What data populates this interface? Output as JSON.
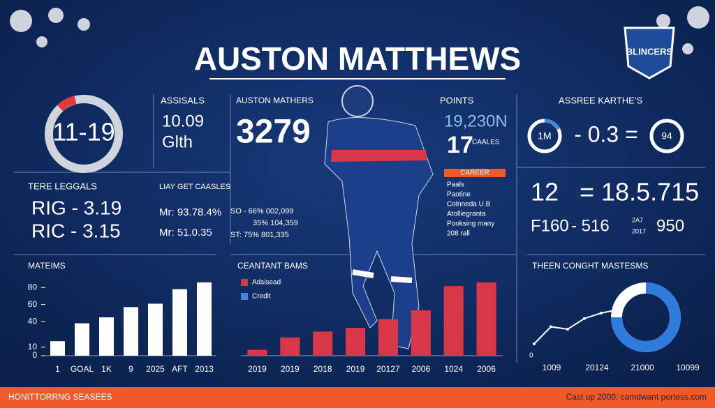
{
  "header": {
    "title": "AUSTON MATTHEWS",
    "logo": "BLINCERS"
  },
  "left": {
    "ring": "11-19",
    "label": "TERE LEGGALS",
    "rows": [
      "RIG - 3.19",
      "RIC - 3.15"
    ]
  },
  "assists": {
    "label": "ASSISALS",
    "line1": "10.09",
    "line2": "Glth"
  },
  "total": {
    "label": "AUSTON MATHERS",
    "value": "3279"
  },
  "stats": {
    "label": "LIAY GET CAASLES",
    "rows": [
      "Mr: 93.78.4%",
      "Mr: 51.0.35"
    ],
    "right": [
      "SO - 66% 002,099",
      "35% 104,359",
      "ST: 75% 801,335"
    ]
  },
  "points": {
    "label": "POINTS",
    "value": "19,230N",
    "num": "17",
    "sub": "CAALES",
    "badge": "CAREER",
    "list": [
      "Paals",
      "Paotine",
      "Colnneda U.B",
      "Atolliegranta",
      "Pooksing many",
      "208 rall"
    ]
  },
  "compare": {
    "label": "ASSREE KARTHE'S",
    "left": "1M",
    "mid": "- 0.3 =",
    "right": "94",
    "row1": [
      "12",
      "= 18.5.715"
    ],
    "row2": [
      "F160",
      "- 516",
      "2A7",
      "2017",
      "950"
    ]
  },
  "chart_data": [
    {
      "type": "bar",
      "title": "MATEIMS",
      "categories": [
        "1",
        "GOAL",
        "1K",
        "9",
        "2025",
        "AFT",
        "2013"
      ],
      "values": [
        17,
        38,
        45,
        57,
        61,
        78,
        86
      ],
      "color": "#ffffff",
      "ylim": [
        0,
        90
      ],
      "yticks": [
        0,
        10,
        40,
        60,
        80
      ]
    },
    {
      "type": "bar",
      "title": "CEANTANT BAMS",
      "categories": [
        "2019",
        "2019",
        "2018",
        "2019",
        "20127",
        "2006",
        "1024",
        "2006"
      ],
      "values": [
        8,
        25,
        33,
        38,
        50,
        62,
        95,
        100
      ],
      "color": "#d8374a",
      "ylim": [
        0,
        100
      ],
      "legend": [
        {
          "name": "Adsisead",
          "color": "#d8374a"
        },
        {
          "name": "Credit",
          "color": "#3f87dd"
        }
      ]
    },
    {
      "type": "line",
      "title": "THEEN CONGHT MASTESMS",
      "values": [
        10,
        45,
        40,
        62,
        73,
        80
      ],
      "color": "#ffffff",
      "ylim": [
        0,
        100
      ],
      "x_labels": [
        "1009",
        "20124",
        "21000",
        "10099"
      ],
      "origin": "0"
    }
  ],
  "footer": {
    "left": "HONITTORRNG SEASEES",
    "right": "Cast up 2000: camdwant pertess.com"
  }
}
